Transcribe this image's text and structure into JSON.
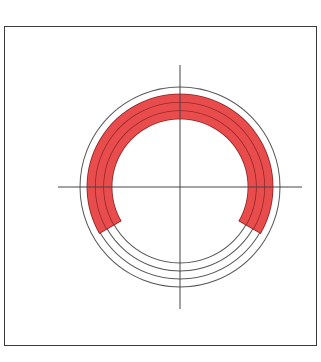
{
  "diagram": {
    "colors": {
      "frame": "#3a3a3a",
      "ring_outline": "#555555",
      "axis": "#444444",
      "band_fill": "#e84c4c",
      "band_separator": "#8a2222"
    },
    "rings": {
      "count": 4
    },
    "band": {
      "layers": 3,
      "left_end_clock_degrees": 240,
      "right_end_clock_degrees": 120,
      "description_fraction_of_circle": 0.67
    }
  }
}
